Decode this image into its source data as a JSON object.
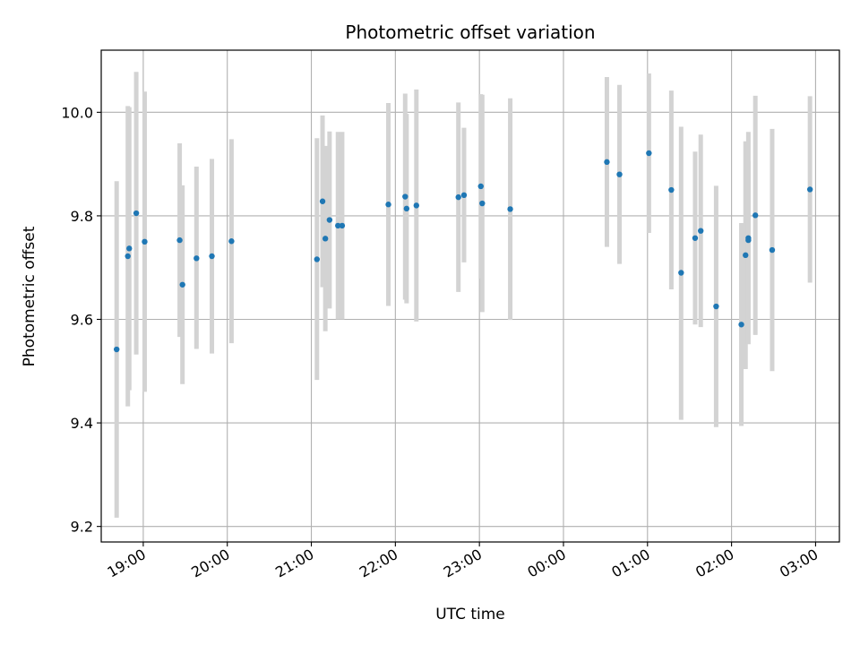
{
  "chart_data": {
    "type": "scatter",
    "title": "Photometric offset variation",
    "xlabel": "UTC time",
    "ylabel": "Photometric offset",
    "x_axis_kind": "time",
    "xlim": [
      "18:30",
      "03:17"
    ],
    "ylim": [
      9.17,
      10.12
    ],
    "grid": true,
    "legend": "none",
    "x_ticks": [
      "19:00",
      "20:00",
      "21:00",
      "22:00",
      "23:00",
      "00:00",
      "01:00",
      "02:00",
      "03:00"
    ],
    "y_ticks": [
      9.2,
      9.4,
      9.6,
      9.8,
      10.0
    ],
    "y_tick_labels": [
      "9.2",
      "9.4",
      "9.6",
      "9.8",
      "10.0"
    ],
    "colors": {
      "point": "#1f77b4",
      "errorbar": "#d3d3d3",
      "grid": "#b0b0b0"
    },
    "series": [
      {
        "points": [
          {
            "x": "18:41",
            "y": 9.542,
            "lo": 9.217,
            "hi": 9.867
          },
          {
            "x": "18:49",
            "y": 9.722,
            "lo": 9.432,
            "hi": 10.012
          },
          {
            "x": "18:50",
            "y": 9.737,
            "lo": 9.463,
            "hi": 10.01
          },
          {
            "x": "18:55",
            "y": 9.805,
            "lo": 9.532,
            "hi": 10.078
          },
          {
            "x": "19:01",
            "y": 9.75,
            "lo": 9.46,
            "hi": 10.04
          },
          {
            "x": "19:26",
            "y": 9.753,
            "lo": 9.566,
            "hi": 9.94
          },
          {
            "x": "19:28",
            "y": 9.667,
            "lo": 9.475,
            "hi": 9.859
          },
          {
            "x": "19:38",
            "y": 9.718,
            "lo": 9.543,
            "hi": 9.895
          },
          {
            "x": "19:49",
            "y": 9.722,
            "lo": 9.534,
            "hi": 9.91
          },
          {
            "x": "20:03",
            "y": 9.751,
            "lo": 9.554,
            "hi": 9.948
          },
          {
            "x": "21:04",
            "y": 9.716,
            "lo": 9.483,
            "hi": 9.95
          },
          {
            "x": "21:08",
            "y": 9.828,
            "lo": 9.662,
            "hi": 9.994
          },
          {
            "x": "21:10",
            "y": 9.756,
            "lo": 9.577,
            "hi": 9.935
          },
          {
            "x": "21:13",
            "y": 9.792,
            "lo": 9.621,
            "hi": 9.963
          },
          {
            "x": "21:19",
            "y": 9.781,
            "lo": 9.6,
            "hi": 9.962
          },
          {
            "x": "21:22",
            "y": 9.781,
            "lo": 9.6,
            "hi": 9.962
          },
          {
            "x": "21:55",
            "y": 9.822,
            "lo": 9.626,
            "hi": 10.018
          },
          {
            "x": "22:07",
            "y": 9.837,
            "lo": 9.638,
            "hi": 10.036
          },
          {
            "x": "22:08",
            "y": 9.814,
            "lo": 9.631,
            "hi": 9.997
          },
          {
            "x": "22:15",
            "y": 9.82,
            "lo": 9.596,
            "hi": 10.044
          },
          {
            "x": "22:45",
            "y": 9.836,
            "lo": 9.653,
            "hi": 10.019
          },
          {
            "x": "22:49",
            "y": 9.84,
            "lo": 9.71,
            "hi": 9.97
          },
          {
            "x": "23:01",
            "y": 9.857,
            "lo": 9.679,
            "hi": 10.035
          },
          {
            "x": "23:02",
            "y": 9.824,
            "lo": 9.614,
            "hi": 10.034
          },
          {
            "x": "23:22",
            "y": 9.813,
            "lo": 9.599,
            "hi": 10.027
          },
          {
            "x": "00:31",
            "y": 9.904,
            "lo": 9.74,
            "hi": 10.068
          },
          {
            "x": "00:40",
            "y": 9.88,
            "lo": 9.707,
            "hi": 10.053
          },
          {
            "x": "01:01",
            "y": 9.921,
            "lo": 9.767,
            "hi": 10.075
          },
          {
            "x": "01:17",
            "y": 9.85,
            "lo": 9.658,
            "hi": 10.042
          },
          {
            "x": "01:24",
            "y": 9.69,
            "lo": 9.406,
            "hi": 9.972
          },
          {
            "x": "01:34",
            "y": 9.757,
            "lo": 9.59,
            "hi": 9.924
          },
          {
            "x": "01:38",
            "y": 9.771,
            "lo": 9.585,
            "hi": 9.957
          },
          {
            "x": "01:49",
            "y": 9.625,
            "lo": 9.392,
            "hi": 9.858
          },
          {
            "x": "02:07",
            "y": 9.59,
            "lo": 9.394,
            "hi": 9.786
          },
          {
            "x": "02:10",
            "y": 9.724,
            "lo": 9.504,
            "hi": 9.944
          },
          {
            "x": "02:12",
            "y": 9.757,
            "lo": 9.552,
            "hi": 9.962
          },
          {
            "x": "02:12",
            "y": 9.753,
            "lo": 9.6,
            "hi": 9.906
          },
          {
            "x": "02:17",
            "y": 9.801,
            "lo": 9.57,
            "hi": 10.032
          },
          {
            "x": "02:29",
            "y": 9.734,
            "lo": 9.5,
            "hi": 9.968
          },
          {
            "x": "02:56",
            "y": 9.851,
            "lo": 9.671,
            "hi": 10.031
          }
        ]
      }
    ]
  }
}
